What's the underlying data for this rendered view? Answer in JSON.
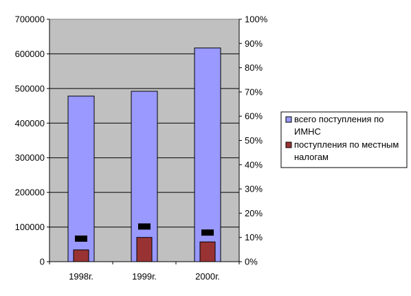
{
  "chart_data": {
    "type": "bar",
    "categories": [
      "1998г.",
      "1999г.",
      "2000г."
    ],
    "series": [
      {
        "name": "всего поступления по ИМНС",
        "values": [
          478000,
          492000,
          617000
        ],
        "color": "#9999ff",
        "axis": "left"
      },
      {
        "name": "поступления по местным налогам",
        "values": [
          34000,
          70000,
          57000
        ],
        "color": "#993333",
        "axis": "left"
      },
      {
        "name": "",
        "values": [
          0.095,
          0.145,
          0.12
        ],
        "color": "#000000",
        "axis": "right",
        "marker": "dash"
      }
    ],
    "ylim": [
      0,
      700000
    ],
    "yticks": [
      "0",
      "100000",
      "200000",
      "300000",
      "400000",
      "500000",
      "600000",
      "700000"
    ],
    "y2lim": [
      0,
      1
    ],
    "y2ticks": [
      "0%",
      "10%",
      "20%",
      "30%",
      "40%",
      "50%",
      "60%",
      "70%",
      "80%",
      "90%",
      "100%"
    ],
    "grid": true,
    "plot_background": "#c0c0c0",
    "legend": {
      "position": "right",
      "entries": [
        {
          "lines": [
            "всего поступления по",
            "ИМНС"
          ],
          "color": "#9999ff"
        },
        {
          "lines": [
            "поступления по местным",
            "налогам"
          ],
          "color": "#993333"
        }
      ]
    }
  }
}
